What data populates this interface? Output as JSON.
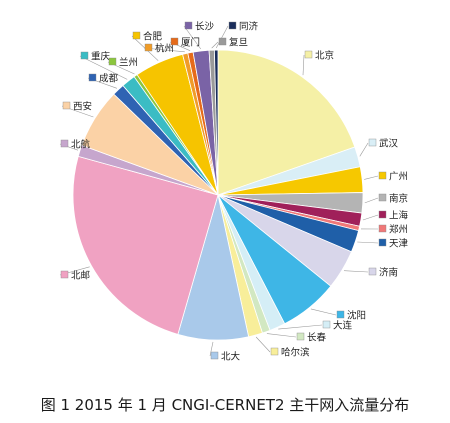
{
  "caption": "图 1 2015 年 1 月 CNGI-CERNET2 主干网入流量分布",
  "chart_data": {
    "type": "pie",
    "title": "",
    "legend": "labels-around-slices",
    "slices": [
      {
        "label": "北京",
        "value": 20.0,
        "color": "#f5f0a6"
      },
      {
        "label": "武汉",
        "value": 2.3,
        "color": "#d9eef6"
      },
      {
        "label": "广州",
        "value": 2.9,
        "color": "#f6c800"
      },
      {
        "label": "南京",
        "value": 2.3,
        "color": "#b4b4b4"
      },
      {
        "label": "上海",
        "value": 1.5,
        "color": "#a0205a"
      },
      {
        "label": "郑州",
        "value": 0.5,
        "color": "#f07878"
      },
      {
        "label": "天津",
        "value": 2.5,
        "color": "#1f5fa8"
      },
      {
        "label": "济南",
        "value": 4.5,
        "color": "#d8d6ea"
      },
      {
        "label": "沈阳",
        "value": 6.7,
        "color": "#3eb6e6"
      },
      {
        "label": "大连",
        "value": 1.8,
        "color": "#d5eef6"
      },
      {
        "label": "长春",
        "value": 0.9,
        "color": "#d2e8c2"
      },
      {
        "label": "哈尔滨",
        "value": 1.6,
        "color": "#f8ee9a"
      },
      {
        "label": "北大",
        "value": 8.0,
        "color": "#a9c9ea"
      },
      {
        "label": "北邮",
        "value": 25.3,
        "color": "#f0a2c2"
      },
      {
        "label": "北航",
        "value": 1.3,
        "color": "#c6a6cd"
      },
      {
        "label": "西安",
        "value": 6.8,
        "color": "#fbd2a6"
      },
      {
        "label": "成都",
        "value": 1.4,
        "color": "#2f63b3"
      },
      {
        "label": "重庆",
        "value": 1.6,
        "color": "#3bbcc4"
      },
      {
        "label": "兰州",
        "value": 0.4,
        "color": "#8cc63e"
      },
      {
        "label": "合肥",
        "value": 5.6,
        "color": "#f6c400"
      },
      {
        "label": "杭州",
        "value": 0.6,
        "color": "#f09c28"
      },
      {
        "label": "厦门",
        "value": 0.6,
        "color": "#e56a1a"
      },
      {
        "label": "长沙",
        "value": 1.8,
        "color": "#7a63a6"
      },
      {
        "label": "复旦",
        "value": 0.6,
        "color": "#9a9a9a"
      },
      {
        "label": "同济",
        "value": 0.4,
        "color": "#1a2d5a"
      }
    ]
  }
}
